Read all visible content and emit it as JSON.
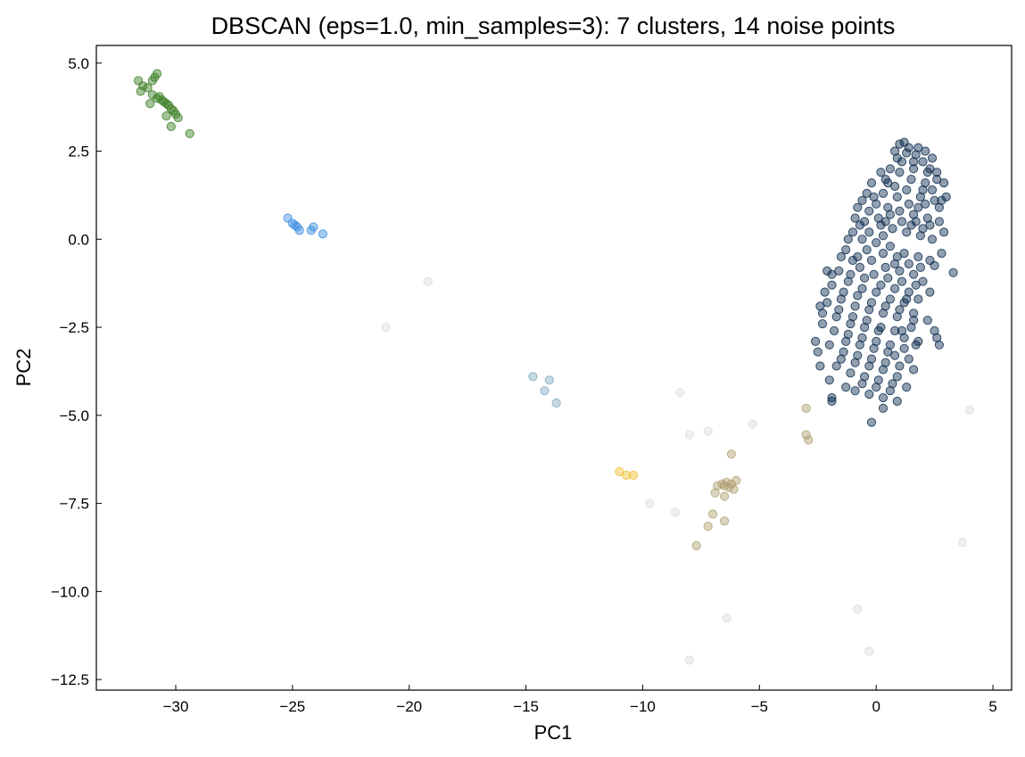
{
  "chart_data": {
    "type": "scatter",
    "title": "DBSCAN (eps=1.0, min_samples=3): 7 clusters, 14 noise points",
    "xlabel": "PC1",
    "ylabel": "PC2",
    "xlim": [
      -33.4,
      5.8
    ],
    "ylim": [
      -12.8,
      5.5
    ],
    "xticks": [
      -30,
      -25,
      -20,
      -15,
      -10,
      -5,
      0,
      5
    ],
    "yticks": [
      5.0,
      2.5,
      0.0,
      -2.5,
      -5.0,
      -7.5,
      -10.0,
      -12.5
    ],
    "xtick_labels": [
      "−30",
      "−25",
      "−20",
      "−15",
      "−10",
      "−5",
      "0",
      "5"
    ],
    "ytick_labels": [
      "5.0",
      "2.5",
      "0.0",
      "−2.5",
      "−5.0",
      "−7.5",
      "−10.0",
      "−12.5"
    ],
    "grid": false,
    "legend": "none",
    "series": [
      {
        "color": "#3a7d22",
        "points": [
          [
            -31.6,
            4.5
          ],
          [
            -31.5,
            4.2
          ],
          [
            -31.4,
            4.35
          ],
          [
            -31.2,
            4.3
          ],
          [
            -31.0,
            4.5
          ],
          [
            -30.9,
            4.6
          ],
          [
            -30.8,
            4.7
          ],
          [
            -30.8,
            4.0
          ],
          [
            -30.7,
            4.05
          ],
          [
            -30.6,
            3.95
          ],
          [
            -30.5,
            3.9
          ],
          [
            -30.4,
            3.85
          ],
          [
            -30.3,
            3.8
          ],
          [
            -30.2,
            3.7
          ],
          [
            -30.1,
            3.65
          ],
          [
            -30.0,
            3.55
          ],
          [
            -29.9,
            3.45
          ],
          [
            -31.1,
            3.85
          ],
          [
            -30.4,
            3.5
          ],
          [
            -30.2,
            3.2
          ],
          [
            -31.0,
            4.1
          ],
          [
            -29.4,
            3.0
          ]
        ]
      },
      {
        "color": "#3b8fe0",
        "points": [
          [
            -25.2,
            0.6
          ],
          [
            -25.0,
            0.45
          ],
          [
            -24.9,
            0.4
          ],
          [
            -24.8,
            0.35
          ],
          [
            -24.7,
            0.25
          ],
          [
            -24.2,
            0.25
          ],
          [
            -24.1,
            0.35
          ],
          [
            -23.7,
            0.15
          ]
        ]
      },
      {
        "color": "#7ea9c0",
        "points": [
          [
            -14.7,
            -3.9
          ],
          [
            -14.2,
            -4.3
          ],
          [
            -14.0,
            -4.0
          ],
          [
            -13.7,
            -4.65
          ]
        ]
      },
      {
        "color": "#f0c030",
        "points": [
          [
            -11.0,
            -6.6
          ],
          [
            -10.7,
            -6.7
          ],
          [
            -10.4,
            -6.7
          ]
        ]
      },
      {
        "color": "#b0a070",
        "points": [
          [
            -6.6,
            -6.95
          ],
          [
            -6.5,
            -7.0
          ],
          [
            -6.4,
            -6.9
          ],
          [
            -6.3,
            -7.05
          ],
          [
            -6.2,
            -6.95
          ],
          [
            -6.1,
            -7.1
          ],
          [
            -6.0,
            -6.85
          ],
          [
            -6.8,
            -7.0
          ],
          [
            -6.9,
            -7.2
          ],
          [
            -6.5,
            -7.3
          ],
          [
            -6.2,
            -6.1
          ],
          [
            -7.0,
            -7.8
          ],
          [
            -7.2,
            -8.15
          ],
          [
            -6.5,
            -8.0
          ],
          [
            -7.7,
            -8.7
          ],
          [
            -3.0,
            -4.8
          ],
          [
            -3.0,
            -5.55
          ],
          [
            -2.9,
            -5.7
          ]
        ]
      },
      {
        "color": "#0a2a4e",
        "points": [
          [
            1.0,
            2.7
          ],
          [
            1.2,
            2.75
          ],
          [
            1.4,
            2.6
          ],
          [
            0.8,
            2.5
          ],
          [
            1.7,
            2.4
          ],
          [
            2.0,
            2.2
          ],
          [
            0.6,
            2.0
          ],
          [
            2.3,
            2.0
          ],
          [
            2.6,
            1.9
          ],
          [
            0.4,
            1.7
          ],
          [
            1.1,
            2.2
          ],
          [
            1.6,
            2.0
          ],
          [
            2.1,
            1.6
          ],
          [
            2.4,
            1.4
          ],
          [
            0.3,
            1.3
          ],
          [
            0.8,
            1.5
          ],
          [
            1.3,
            1.4
          ],
          [
            1.9,
            1.2
          ],
          [
            2.5,
            1.1
          ],
          [
            3.0,
            1.2
          ],
          [
            -0.4,
            1.3
          ],
          [
            -0.6,
            1.1
          ],
          [
            -0.8,
            0.9
          ],
          [
            0.0,
            1.0
          ],
          [
            0.5,
            0.9
          ],
          [
            1.0,
            0.8
          ],
          [
            1.6,
            0.7
          ],
          [
            2.2,
            0.6
          ],
          [
            2.7,
            0.5
          ],
          [
            -0.9,
            0.6
          ],
          [
            -0.5,
            0.5
          ],
          [
            0.2,
            0.4
          ],
          [
            0.7,
            0.3
          ],
          [
            1.3,
            0.2
          ],
          [
            1.9,
            0.1
          ],
          [
            2.4,
            0.0
          ],
          [
            -1.0,
            0.2
          ],
          [
            -0.6,
            0.0
          ],
          [
            0.0,
            -0.1
          ],
          [
            0.6,
            -0.2
          ],
          [
            1.2,
            -0.4
          ],
          [
            1.8,
            -0.5
          ],
          [
            2.3,
            -0.6
          ],
          [
            -1.3,
            -0.3
          ],
          [
            -0.8,
            -0.5
          ],
          [
            -0.2,
            -0.6
          ],
          [
            0.4,
            -0.8
          ],
          [
            1.0,
            -0.9
          ],
          [
            1.6,
            -1.0
          ],
          [
            2.0,
            -1.2
          ],
          [
            -1.6,
            -0.9
          ],
          [
            -1.1,
            -1.0
          ],
          [
            -0.5,
            -1.1
          ],
          [
            0.2,
            -1.3
          ],
          [
            0.8,
            -1.4
          ],
          [
            1.4,
            -1.5
          ],
          [
            -1.9,
            -1.3
          ],
          [
            -1.4,
            -1.5
          ],
          [
            -0.8,
            -1.6
          ],
          [
            -0.2,
            -1.8
          ],
          [
            0.4,
            -1.9
          ],
          [
            1.0,
            -2.0
          ],
          [
            1.6,
            -2.1
          ],
          [
            -2.1,
            -1.8
          ],
          [
            -1.6,
            -2.0
          ],
          [
            -1.0,
            -2.2
          ],
          [
            -0.4,
            -2.3
          ],
          [
            0.2,
            -2.5
          ],
          [
            0.8,
            -2.6
          ],
          [
            1.5,
            -2.5
          ],
          [
            -2.3,
            -2.4
          ],
          [
            -1.8,
            -2.6
          ],
          [
            -1.2,
            -2.7
          ],
          [
            -0.6,
            -2.8
          ],
          [
            0.0,
            -2.9
          ],
          [
            0.6,
            -3.0
          ],
          [
            1.2,
            -3.1
          ],
          [
            -2.0,
            -3.0
          ],
          [
            -1.4,
            -3.2
          ],
          [
            -0.8,
            -3.3
          ],
          [
            -0.2,
            -3.4
          ],
          [
            0.4,
            -3.5
          ],
          [
            1.0,
            -3.6
          ],
          [
            1.6,
            -3.7
          ],
          [
            -1.7,
            -3.6
          ],
          [
            -1.1,
            -3.8
          ],
          [
            -0.5,
            -3.9
          ],
          [
            0.1,
            -4.0
          ],
          [
            0.7,
            -4.1
          ],
          [
            1.3,
            -4.2
          ],
          [
            -0.9,
            -4.3
          ],
          [
            -0.3,
            -4.4
          ],
          [
            0.3,
            -4.5
          ],
          [
            0.9,
            -4.6
          ],
          [
            -1.9,
            -4.5
          ],
          [
            -1.9,
            -4.6
          ],
          [
            -0.2,
            -5.2
          ],
          [
            0.3,
            -4.8
          ],
          [
            2.5,
            -2.6
          ],
          [
            2.6,
            -2.8
          ],
          [
            2.7,
            -3.0
          ],
          [
            3.3,
            -0.95
          ],
          [
            2.8,
            1.1
          ],
          [
            2.5,
            -0.75
          ],
          [
            -2.1,
            -0.9
          ],
          [
            -2.3,
            -2.1
          ],
          [
            1.7,
            -3.0
          ],
          [
            0.5,
            1.6
          ],
          [
            1.0,
            1.9
          ],
          [
            1.5,
            1.7
          ],
          [
            2.0,
            1.4
          ],
          [
            2.2,
            1.9
          ],
          [
            2.6,
            1.7
          ],
          [
            0.1,
            0.6
          ],
          [
            0.6,
            0.7
          ],
          [
            1.1,
            0.5
          ],
          [
            1.5,
            0.4
          ],
          [
            2.0,
            0.3
          ],
          [
            -0.3,
            0.2
          ],
          [
            0.3,
            0.1
          ],
          [
            0.9,
            -0.5
          ],
          [
            1.4,
            -0.7
          ],
          [
            1.9,
            -0.8
          ],
          [
            -0.7,
            -0.8
          ],
          [
            -0.1,
            -1.0
          ],
          [
            0.5,
            -1.1
          ],
          [
            1.1,
            -1.2
          ],
          [
            -1.2,
            -1.2
          ],
          [
            -0.6,
            -1.4
          ],
          [
            0.0,
            -1.5
          ],
          [
            0.6,
            -1.7
          ],
          [
            1.2,
            -1.8
          ],
          [
            -1.5,
            -1.7
          ],
          [
            -0.9,
            -1.9
          ],
          [
            -0.3,
            -2.0
          ],
          [
            0.3,
            -2.1
          ],
          [
            0.9,
            -2.2
          ],
          [
            -1.7,
            -2.2
          ],
          [
            -1.1,
            -2.4
          ],
          [
            -0.5,
            -2.5
          ],
          [
            0.1,
            -2.6
          ],
          [
            -1.3,
            -2.9
          ],
          [
            -0.7,
            -3.0
          ],
          [
            -0.1,
            -3.1
          ],
          [
            0.5,
            -3.2
          ],
          [
            -1.5,
            -3.4
          ],
          [
            -0.9,
            -3.5
          ],
          [
            -0.3,
            -3.6
          ],
          [
            0.3,
            -3.7
          ],
          [
            0.9,
            -3.9
          ],
          [
            -0.6,
            -4.1
          ],
          [
            0.0,
            -4.2
          ],
          [
            0.6,
            -4.3
          ],
          [
            1.2,
            -2.8
          ],
          [
            1.8,
            -2.9
          ],
          [
            2.2,
            -2.3
          ],
          [
            1.8,
            -1.7
          ],
          [
            2.3,
            -1.5
          ],
          [
            2.8,
            -0.4
          ],
          [
            2.9,
            0.2
          ],
          [
            1.8,
            2.6
          ],
          [
            1.3,
            2.45
          ],
          [
            0.9,
            2.3
          ],
          [
            0.2,
            1.9
          ],
          [
            -0.2,
            1.6
          ],
          [
            -0.1,
            1.2
          ],
          [
            -0.3,
            0.8
          ],
          [
            0.4,
            0.5
          ],
          [
            -0.7,
            0.4
          ],
          [
            -1.2,
            0.0
          ],
          [
            -1.5,
            -0.5
          ],
          [
            -1.9,
            -1.0
          ],
          [
            -2.2,
            -1.5
          ],
          [
            -2.4,
            -1.9
          ],
          [
            -2.6,
            -2.9
          ],
          [
            -2.5,
            -3.2
          ],
          [
            -2.4,
            -3.6
          ],
          [
            -2.0,
            -4.0
          ],
          [
            -1.3,
            -4.2
          ],
          [
            0.8,
            -3.3
          ],
          [
            1.4,
            -3.4
          ],
          [
            1.1,
            -2.6
          ],
          [
            1.6,
            -2.3
          ],
          [
            1.3,
            -1.7
          ],
          [
            1.7,
            -1.3
          ],
          [
            0.8,
            -0.7
          ],
          [
            0.3,
            -0.4
          ],
          [
            -0.4,
            -0.3
          ],
          [
            -1.0,
            -0.6
          ],
          [
            0.9,
            1.2
          ],
          [
            1.4,
            1.0
          ],
          [
            1.8,
            0.9
          ],
          [
            2.1,
            1.0
          ],
          [
            1.7,
            0.5
          ],
          [
            2.3,
            0.4
          ],
          [
            2.7,
            0.9
          ],
          [
            2.9,
            1.6
          ],
          [
            2.4,
            2.3
          ],
          [
            2.1,
            2.5
          ],
          [
            1.6,
            2.2
          ]
        ]
      },
      {
        "color": "#dcdcdc",
        "points": [
          [
            -19.2,
            -1.2
          ],
          [
            -21.0,
            -2.5
          ],
          [
            -8.4,
            -4.35
          ],
          [
            -8.0,
            -5.55
          ],
          [
            -7.2,
            -5.45
          ],
          [
            -5.3,
            -5.25
          ],
          [
            -9.7,
            -7.5
          ],
          [
            -8.6,
            -7.75
          ],
          [
            -6.4,
            -10.75
          ],
          [
            -8.0,
            -11.95
          ],
          [
            -0.8,
            -10.5
          ],
          [
            -0.3,
            -11.7
          ],
          [
            4.0,
            -4.85
          ],
          [
            3.7,
            -8.6
          ]
        ]
      }
    ]
  }
}
